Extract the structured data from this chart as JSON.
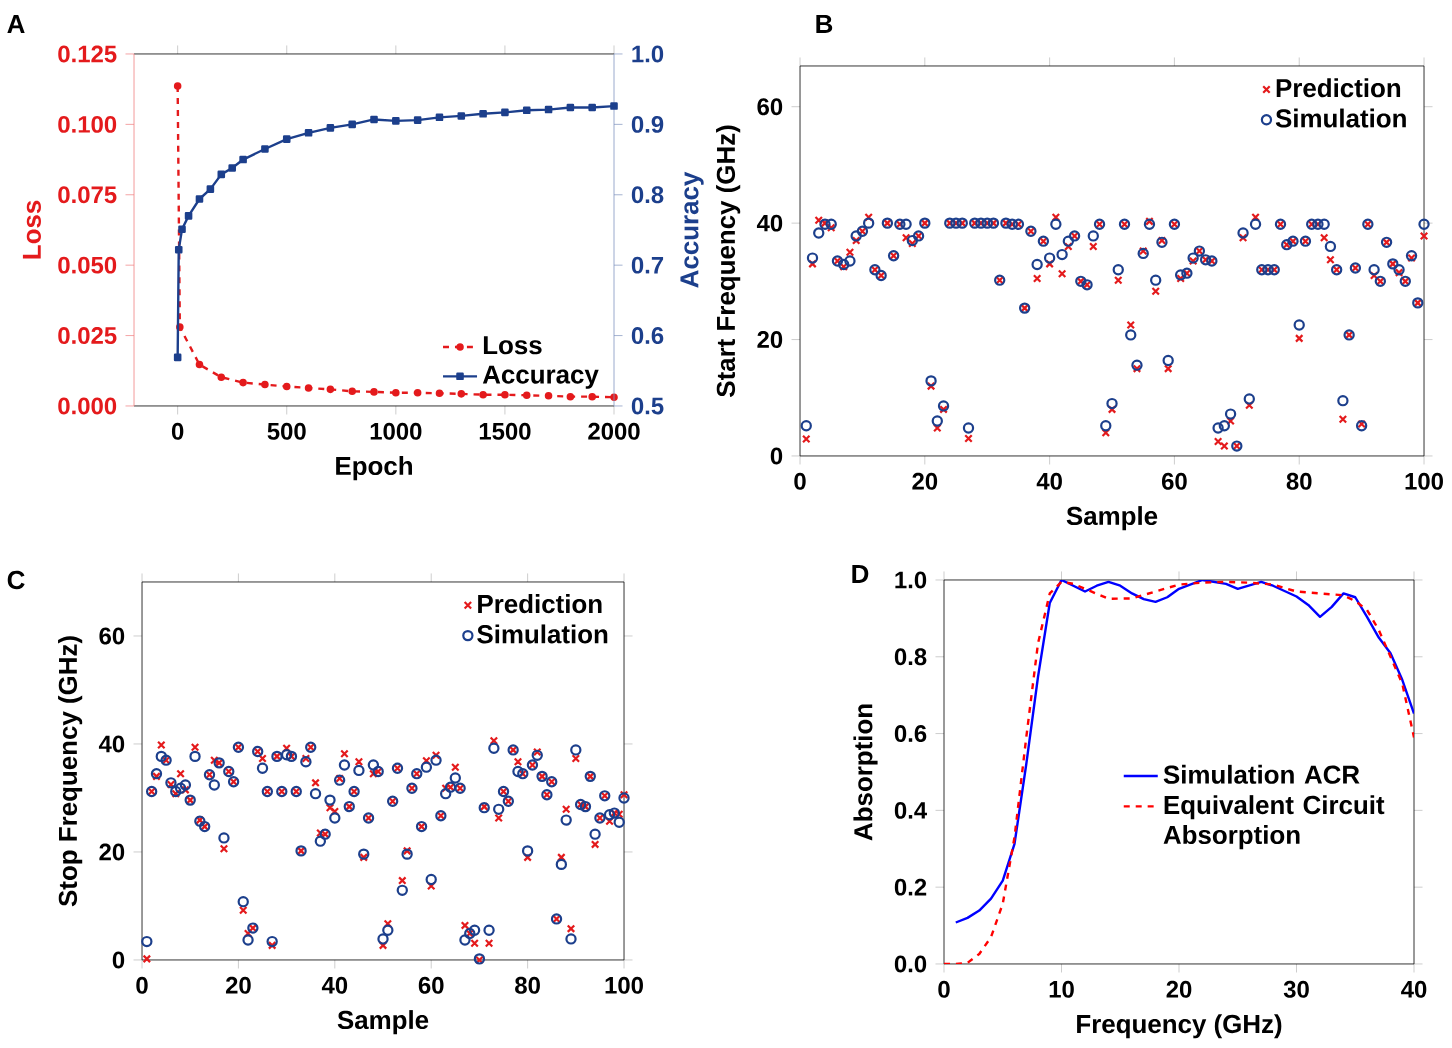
{
  "chart_data": [
    {
      "type": "line",
      "xlabel": "Epoch",
      "ylabel": "Loss",
      "y2label": "Accuracy",
      "annotations": [
        "A"
      ],
      "xlim": [
        -200,
        2000
      ],
      "xticks": [
        0,
        500,
        1000,
        1500,
        2000
      ],
      "ylim": [
        0,
        0.125
      ],
      "yticks": [
        {
          "value": 0,
          "label": "0.000"
        },
        {
          "value": 0.025,
          "label": "0.025"
        },
        {
          "value": 0.05,
          "label": "0.050"
        },
        {
          "value": 0.075,
          "label": "0.075"
        },
        {
          "value": 0.1,
          "label": "0.100"
        },
        {
          "value": 0.125,
          "label": "0.125"
        }
      ],
      "y2lim": [
        0.5,
        1.0
      ],
      "y2ticks": [
        0.5,
        0.6,
        0.7,
        0.8,
        0.9,
        {
          "value": 1.0,
          "label": "1.0"
        }
      ],
      "legend": "bottom right",
      "series": [
        {
          "name": "Loss",
          "color": "#e41a1c",
          "marker": "circle",
          "line_style": "dashed",
          "x": [
            0,
            10,
            100,
            200,
            300,
            400,
            500,
            600,
            700,
            800,
            900,
            1000,
            1100,
            1200,
            1300,
            1400,
            1500,
            1600,
            1700,
            1800,
            1900,
            2000
          ],
          "values": [
            0.1136,
            0.028,
            0.0147,
            0.0102,
            0.0083,
            0.0076,
            0.0069,
            0.0064,
            0.0059,
            0.0052,
            0.005,
            0.0047,
            0.0047,
            0.0045,
            0.0043,
            0.004,
            0.004,
            0.0038,
            0.0036,
            0.0033,
            0.0033,
            0.0031
          ]
        },
        {
          "name": "Accuracy",
          "color": "#1c3f8c",
          "marker": "square",
          "line_style": "solid",
          "axis": "y2",
          "x": [
            0,
            5,
            20,
            50,
            100,
            150,
            200,
            250,
            300,
            400,
            500,
            600,
            700,
            800,
            900,
            1000,
            1100,
            1200,
            1300,
            1400,
            1500,
            1600,
            1700,
            1800,
            1900,
            2000
          ],
          "values": [
            0.569,
            0.722,
            0.751,
            0.77,
            0.794,
            0.808,
            0.829,
            0.838,
            0.85,
            0.865,
            0.879,
            0.888,
            0.895,
            0.9,
            0.907,
            0.905,
            0.906,
            0.91,
            0.912,
            0.915,
            0.917,
            0.92,
            0.921,
            0.924,
            0.924,
            0.926
          ]
        }
      ]
    },
    {
      "type": "scatter",
      "xlabel": "Sample",
      "ylabel": "Start Frequency (GHz)",
      "annotations": [
        "B"
      ],
      "xlim": [
        0,
        100
      ],
      "xticks": [
        0,
        20,
        40,
        60,
        80,
        100
      ],
      "ylim": [
        0,
        67
      ],
      "yticks": [
        0,
        20,
        40,
        60
      ],
      "legend": "top right",
      "x": [
        1,
        2,
        3,
        4,
        5,
        6,
        7,
        8,
        9,
        10,
        11,
        12,
        13,
        14,
        15,
        16,
        17,
        18,
        19,
        20,
        21,
        22,
        23,
        24,
        25,
        26,
        27,
        28,
        29,
        30,
        31,
        32,
        33,
        34,
        35,
        36,
        37,
        38,
        39,
        40,
        41,
        42,
        43,
        44,
        45,
        46,
        47,
        48,
        49,
        50,
        51,
        52,
        53,
        54,
        55,
        56,
        57,
        58,
        59,
        60,
        61,
        62,
        63,
        64,
        65,
        66,
        67,
        68,
        69,
        70,
        71,
        72,
        73,
        74,
        75,
        76,
        77,
        78,
        79,
        80,
        81,
        82,
        83,
        84,
        85,
        86,
        87,
        88,
        89,
        90,
        91,
        92,
        93,
        94,
        95,
        96,
        97,
        98,
        99,
        100
      ],
      "series": [
        {
          "name": "Prediction",
          "color": "#e41a1c",
          "marker": "cross",
          "values": [
            2.9,
            33,
            40.5,
            40,
            39.2,
            33.5,
            32.5,
            35,
            37,
            38.6,
            41,
            32,
            31,
            40,
            34.4,
            39.8,
            37.5,
            36.5,
            37.8,
            40,
            12,
            4.8,
            8,
            40,
            40,
            40,
            3,
            40,
            40,
            40,
            40,
            30.2,
            40,
            39.8,
            39.8,
            25.4,
            38.6,
            30.5,
            36.9,
            33,
            41,
            31.3,
            36,
            37.8,
            30,
            29.4,
            36,
            39.8,
            4,
            8,
            30.2,
            39.8,
            22.5,
            15,
            35.2,
            40.3,
            28.3,
            37,
            15,
            39.8,
            30.5,
            31.4,
            33.5,
            35.2,
            33.7,
            33.5,
            2.5,
            1.7,
            6,
            1.7,
            37.5,
            8.7,
            41,
            32,
            32,
            32,
            39.8,
            36.3,
            36.9,
            20.2,
            36.9,
            39.8,
            39.8,
            37.5,
            33.7,
            32,
            6.3,
            20.8,
            32.3,
            5.5,
            39.8,
            31,
            30,
            36.7,
            33,
            31.5,
            30,
            34,
            26.3,
            37.8
          ]
        },
        {
          "name": "Simulation",
          "color": "#1c3f8c",
          "marker": "circle",
          "values": [
            5.2,
            34,
            38.3,
            39.8,
            39.8,
            33.5,
            32.9,
            33.5,
            37.8,
            38.6,
            40,
            32,
            31,
            40,
            34.4,
            39.8,
            39.8,
            37,
            37.8,
            40,
            12.9,
            6,
            8.6,
            40,
            40,
            40,
            4.8,
            40,
            40,
            40,
            40,
            30.2,
            40,
            39.8,
            39.8,
            25.4,
            38.6,
            32.9,
            36.9,
            34,
            39.8,
            34.6,
            36.9,
            37.8,
            30,
            29.4,
            37.8,
            39.8,
            5.2,
            9,
            32,
            39.8,
            20.8,
            15.6,
            34.8,
            39.8,
            30.2,
            36.7,
            16.4,
            39.8,
            31.1,
            31.4,
            34,
            35.2,
            33.7,
            33.5,
            4.8,
            5.2,
            7.2,
            1.7,
            38.3,
            9.8,
            39.8,
            32,
            32,
            32,
            39.8,
            36.3,
            36.9,
            22.5,
            36.9,
            39.8,
            39.8,
            39.8,
            36,
            32,
            9.5,
            20.8,
            32.3,
            5.2,
            39.8,
            32,
            30,
            36.7,
            33,
            32,
            30,
            34.4,
            26.3,
            39.8
          ]
        }
      ]
    },
    {
      "type": "scatter",
      "xlabel": "Sample",
      "ylabel": "Stop Frequency (GHz)",
      "annotations": [
        "C"
      ],
      "xlim": [
        0,
        100
      ],
      "xticks": [
        0,
        20,
        40,
        60,
        80,
        100
      ],
      "ylim": [
        0,
        70
      ],
      "yticks": [
        0,
        20,
        40,
        60
      ],
      "legend": "top right",
      "x": [
        1,
        2,
        3,
        4,
        5,
        6,
        7,
        8,
        9,
        10,
        11,
        12,
        13,
        14,
        15,
        16,
        17,
        18,
        19,
        20,
        21,
        22,
        23,
        24,
        25,
        26,
        27,
        28,
        29,
        30,
        31,
        32,
        33,
        34,
        35,
        36,
        37,
        38,
        39,
        40,
        41,
        42,
        43,
        44,
        45,
        46,
        47,
        48,
        49,
        50,
        51,
        52,
        53,
        54,
        55,
        56,
        57,
        58,
        59,
        60,
        61,
        62,
        63,
        64,
        65,
        66,
        67,
        68,
        69,
        70,
        71,
        72,
        73,
        74,
        75,
        76,
        77,
        78,
        79,
        80,
        81,
        82,
        83,
        84,
        85,
        86,
        87,
        88,
        89,
        90,
        91,
        92,
        93,
        94,
        95,
        96,
        97,
        98,
        99,
        100
      ],
      "series": [
        {
          "name": "Prediction",
          "color": "#e41a1c",
          "marker": "cross",
          "values": [
            0.2,
            31.2,
            34,
            39.8,
            37,
            32.5,
            30.8,
            34.5,
            31.5,
            29.6,
            39.4,
            25.9,
            24.7,
            34.3,
            37,
            36.5,
            20.6,
            34.9,
            33,
            39.4,
            9.2,
            4.9,
            5.9,
            38.6,
            37.3,
            31.2,
            2.7,
            37.7,
            31.2,
            39.2,
            37.7,
            31.2,
            20.2,
            37.3,
            39.4,
            32.8,
            23.5,
            23.3,
            28.2,
            27.5,
            33.6,
            38.2,
            28.4,
            31.2,
            36.7,
            19,
            26.3,
            34.5,
            34.9,
            2.7,
            6.7,
            29.4,
            35.5,
            14.7,
            20.2,
            31.8,
            34.5,
            24.7,
            36.9,
            13.7,
            37.9,
            26.7,
            31.8,
            32,
            35.7,
            31.8,
            6.4,
            4.9,
            3.1,
            0,
            28.4,
            3.1,
            40.6,
            26.3,
            31.2,
            29.4,
            38.9,
            36.7,
            34.5,
            19,
            36.1,
            38.5,
            34,
            30.6,
            33,
            7.6,
            19,
            27.9,
            5.8,
            37.3,
            28.8,
            28.4,
            34,
            21.4,
            26.3,
            30.4,
            25.7,
            27.2,
            27,
            30.6
          ]
        },
        {
          "name": "Simulation",
          "color": "#1c3f8c",
          "marker": "circle",
          "values": [
            3.4,
            31.2,
            34.5,
            37.7,
            37,
            32.8,
            31.2,
            31.8,
            32.4,
            29.6,
            37.7,
            25.7,
            24.7,
            34.3,
            32.4,
            36.5,
            22.6,
            34.9,
            33,
            39.4,
            10.8,
            3.7,
            5.9,
            38.6,
            35.5,
            31.2,
            3.4,
            37.7,
            31.2,
            38,
            37.7,
            31.2,
            20.2,
            36.7,
            39.4,
            30.8,
            22,
            23.3,
            29.6,
            26.3,
            33.3,
            36.1,
            28.4,
            31.2,
            35.1,
            19.6,
            26.3,
            36.1,
            34.9,
            3.9,
            5.5,
            29.4,
            35.5,
            12.9,
            19.6,
            31.8,
            34.5,
            24.7,
            35.7,
            14.9,
            37,
            26.7,
            30.8,
            32,
            33.7,
            31.8,
            3.7,
            4.9,
            5.5,
            0.2,
            28.2,
            5.5,
            39.2,
            27.9,
            31.2,
            29.4,
            38.9,
            34.9,
            34.5,
            20.2,
            36.1,
            37.9,
            34,
            30.6,
            33,
            7.6,
            17.7,
            25.9,
            3.9,
            38.9,
            28.8,
            28.4,
            34,
            23.3,
            26.3,
            30.4,
            26.9,
            27.2,
            25.5,
            30
          ]
        }
      ]
    },
    {
      "type": "line",
      "xlabel": "Frequency (GHz)",
      "ylabel": "Absorption",
      "annotations": [
        "D"
      ],
      "xlim": [
        0,
        40
      ],
      "xticks": [
        0,
        10,
        20,
        30,
        40
      ],
      "ylim": [
        0,
        1
      ],
      "yticks": [
        {
          "value": 0,
          "label": "0.0"
        },
        0.2,
        0.4,
        0.6,
        0.8,
        {
          "value": 1,
          "label": "1.0"
        }
      ],
      "legend": "right",
      "series": [
        {
          "name": "Simulation ACR",
          "color": "#0000ff",
          "line_style": "solid",
          "x": [
            1,
            2,
            3,
            4,
            5,
            6,
            7,
            8,
            9,
            10,
            11,
            12,
            13,
            14,
            15,
            16,
            17,
            18,
            19,
            20,
            22,
            24,
            25,
            27,
            28,
            30,
            31,
            32,
            33,
            34,
            35,
            36,
            37,
            38,
            39,
            40
          ],
          "values": [
            0.108,
            0.12,
            0.139,
            0.17,
            0.217,
            0.313,
            0.52,
            0.748,
            0.94,
            1.0,
            0.985,
            0.97,
            0.985,
            0.995,
            0.985,
            0.965,
            0.95,
            0.943,
            0.955,
            0.977,
            1.0,
            0.99,
            0.977,
            0.995,
            0.985,
            0.957,
            0.935,
            0.904,
            0.93,
            0.965,
            0.955,
            0.904,
            0.85,
            0.809,
            0.74,
            0.652
          ]
        },
        {
          "name": "Equivalent Circuit Absorption",
          "color": "#ff0000",
          "line_style": "dashed",
          "x": [
            0,
            1,
            2,
            3,
            4,
            5,
            6,
            7,
            8,
            9,
            10,
            11,
            12,
            14,
            16,
            18,
            20,
            22,
            24,
            26,
            28,
            30,
            32,
            34,
            35,
            36,
            37,
            38,
            39,
            40
          ],
          "values": [
            0,
            0,
            0.003,
            0.026,
            0.07,
            0.157,
            0.33,
            0.59,
            0.835,
            0.965,
            0.995,
            0.99,
            0.977,
            0.951,
            0.952,
            0.97,
            0.988,
            0.993,
            0.995,
            0.993,
            0.988,
            0.97,
            0.965,
            0.96,
            0.945,
            0.922,
            0.87,
            0.8,
            0.73,
            0.59
          ]
        }
      ]
    }
  ]
}
